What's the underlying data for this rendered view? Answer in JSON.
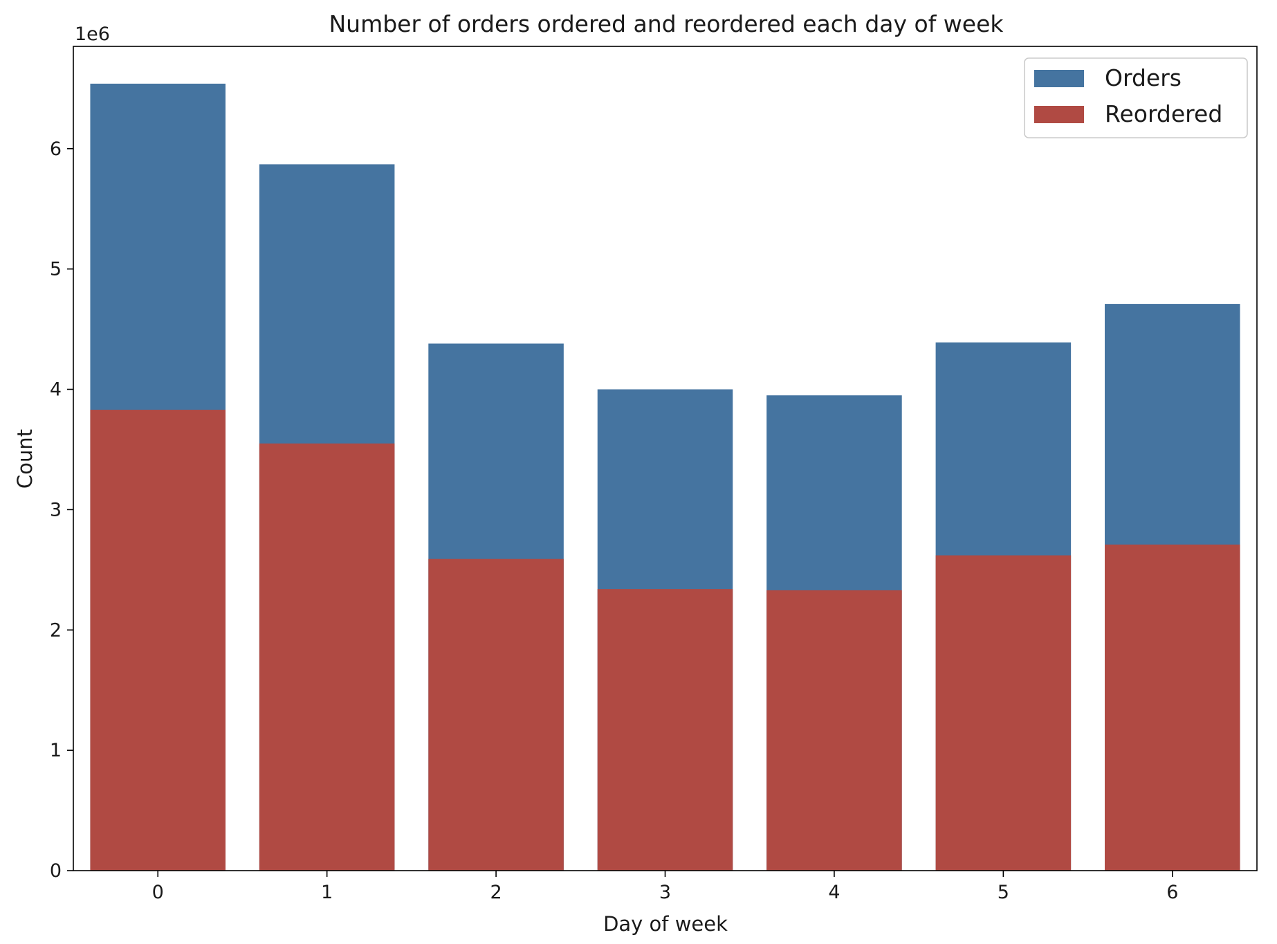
{
  "chart_data": {
    "type": "bar",
    "title": "Number of orders ordered and reordered each day of week",
    "xlabel": "Day of week",
    "ylabel": "Count",
    "y_offset_label": "1e6",
    "categories": [
      "0",
      "1",
      "2",
      "3",
      "4",
      "5",
      "6"
    ],
    "series": [
      {
        "name": "Orders",
        "color": "#4574a0",
        "values": [
          6540000,
          5870000,
          4380000,
          4000000,
          3950000,
          4390000,
          4710000
        ]
      },
      {
        "name": "Reordered",
        "color": "#b04a43",
        "values": [
          3830000,
          3550000,
          2590000,
          2340000,
          2330000,
          2620000,
          2710000
        ]
      }
    ],
    "overlay": true,
    "ylim": [
      0,
      6850000
    ],
    "y_ticks": [
      0,
      1,
      2,
      3,
      4,
      5,
      6
    ],
    "y_tick_multiplier": 1000000,
    "grid": false,
    "legend": "top-right"
  }
}
